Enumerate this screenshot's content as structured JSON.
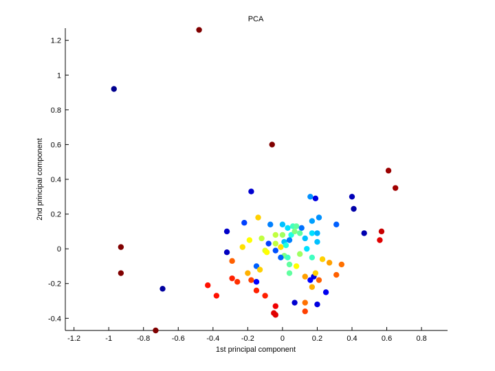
{
  "chart_data": {
    "type": "scatter",
    "title": "PCA",
    "xlabel": "1st principal component",
    "ylabel": "2nd principal component",
    "xlim": [
      -1.25,
      0.95
    ],
    "ylim": [
      -0.47,
      1.27
    ],
    "xticks": [
      -1.2,
      -1,
      -0.8,
      -0.6,
      -0.4,
      -0.2,
      0,
      0.2,
      0.4,
      0.6,
      0.8
    ],
    "yticks": [
      -0.4,
      -0.2,
      0,
      0.2,
      0.4,
      0.6,
      0.8,
      1,
      1.2
    ],
    "grid": false,
    "legend": "none",
    "colormap": "jet",
    "points": [
      {
        "x": -0.48,
        "y": 1.26,
        "color": "#800000"
      },
      {
        "x": -0.97,
        "y": 0.92,
        "color": "#00008f"
      },
      {
        "x": -0.06,
        "y": 0.6,
        "color": "#800000"
      },
      {
        "x": 0.61,
        "y": 0.45,
        "color": "#9b0000"
      },
      {
        "x": 0.65,
        "y": 0.35,
        "color": "#a00000"
      },
      {
        "x": -0.93,
        "y": 0.01,
        "color": "#800000"
      },
      {
        "x": -0.93,
        "y": -0.14,
        "color": "#800000"
      },
      {
        "x": -0.73,
        "y": -0.47,
        "color": "#800000"
      },
      {
        "x": -0.69,
        "y": -0.23,
        "color": "#00009f"
      },
      {
        "x": 0.57,
        "y": 0.1,
        "color": "#c80000"
      },
      {
        "x": 0.56,
        "y": 0.05,
        "color": "#e00000"
      },
      {
        "x": 0.47,
        "y": 0.09,
        "color": "#0000b0"
      },
      {
        "x": 0.41,
        "y": 0.23,
        "color": "#0000a8"
      },
      {
        "x": 0.4,
        "y": 0.3,
        "color": "#0000b8"
      },
      {
        "x": -0.18,
        "y": 0.33,
        "color": "#0000d0"
      },
      {
        "x": -0.32,
        "y": 0.1,
        "color": "#0000c8"
      },
      {
        "x": -0.32,
        "y": -0.02,
        "color": "#0000c0"
      },
      {
        "x": 0.16,
        "y": 0.3,
        "color": "#0090ff"
      },
      {
        "x": 0.19,
        "y": 0.29,
        "color": "#0000e0"
      },
      {
        "x": 0.31,
        "y": 0.14,
        "color": "#0060ff"
      },
      {
        "x": -0.22,
        "y": 0.15,
        "color": "#0040ff"
      },
      {
        "x": -0.07,
        "y": 0.14,
        "color": "#0080ff"
      },
      {
        "x": -0.14,
        "y": 0.18,
        "color": "#ffd000"
      },
      {
        "x": 0.0,
        "y": 0.14,
        "color": "#00c0ff"
      },
      {
        "x": 0.03,
        "y": 0.12,
        "color": "#00e0ff"
      },
      {
        "x": 0.06,
        "y": 0.13,
        "color": "#40ffc0"
      },
      {
        "x": 0.08,
        "y": 0.13,
        "color": "#60ffa0"
      },
      {
        "x": 0.11,
        "y": 0.12,
        "color": "#0070ff"
      },
      {
        "x": 0.17,
        "y": 0.16,
        "color": "#00a0ff"
      },
      {
        "x": 0.21,
        "y": 0.18,
        "color": "#0090ff"
      },
      {
        "x": 0.05,
        "y": 0.08,
        "color": "#20ffe0"
      },
      {
        "x": 0.07,
        "y": 0.1,
        "color": "#80ff80"
      },
      {
        "x": 0.1,
        "y": 0.09,
        "color": "#60ffa0"
      },
      {
        "x": 0.13,
        "y": 0.06,
        "color": "#00c0ff"
      },
      {
        "x": 0.17,
        "y": 0.09,
        "color": "#00e0ff"
      },
      {
        "x": 0.2,
        "y": 0.09,
        "color": "#00b0ff"
      },
      {
        "x": 0.2,
        "y": 0.04,
        "color": "#00c0ff"
      },
      {
        "x": -0.19,
        "y": 0.05,
        "color": "#ffff00"
      },
      {
        "x": -0.23,
        "y": 0.01,
        "color": "#ffe000"
      },
      {
        "x": -0.12,
        "y": 0.06,
        "color": "#c0ff40"
      },
      {
        "x": -0.08,
        "y": 0.03,
        "color": "#0040ff"
      },
      {
        "x": -0.04,
        "y": 0.08,
        "color": "#c0ff40"
      },
      {
        "x": 0.0,
        "y": 0.08,
        "color": "#a0ff60"
      },
      {
        "x": 0.01,
        "y": 0.04,
        "color": "#00c0ff"
      },
      {
        "x": 0.04,
        "y": 0.05,
        "color": "#0080ff"
      },
      {
        "x": -0.04,
        "y": 0.03,
        "color": "#c0ff40"
      },
      {
        "x": -0.01,
        "y": 0.01,
        "color": "#ffe000"
      },
      {
        "x": 0.02,
        "y": 0.02,
        "color": "#20ffe0"
      },
      {
        "x": -0.1,
        "y": -0.01,
        "color": "#e0ff20"
      },
      {
        "x": -0.09,
        "y": -0.02,
        "color": "#ffff00"
      },
      {
        "x": -0.04,
        "y": -0.01,
        "color": "#0050ff"
      },
      {
        "x": 0.01,
        "y": -0.04,
        "color": "#80ff80"
      },
      {
        "x": -0.01,
        "y": -0.05,
        "color": "#0060ff"
      },
      {
        "x": 0.03,
        "y": -0.05,
        "color": "#40ffc0"
      },
      {
        "x": 0.1,
        "y": -0.03,
        "color": "#a0ff60"
      },
      {
        "x": 0.14,
        "y": 0.0,
        "color": "#00e0ff"
      },
      {
        "x": 0.17,
        "y": -0.05,
        "color": "#40ffc0"
      },
      {
        "x": -0.29,
        "y": -0.07,
        "color": "#ff6000"
      },
      {
        "x": -0.15,
        "y": -0.1,
        "color": "#0060ff"
      },
      {
        "x": -0.13,
        "y": -0.12,
        "color": "#ffd000"
      },
      {
        "x": -0.2,
        "y": -0.14,
        "color": "#ffb000"
      },
      {
        "x": -0.18,
        "y": -0.18,
        "color": "#ff4000"
      },
      {
        "x": -0.15,
        "y": -0.19,
        "color": "#0000ff"
      },
      {
        "x": -0.26,
        "y": -0.19,
        "color": "#ff3000"
      },
      {
        "x": -0.29,
        "y": -0.17,
        "color": "#ff2000"
      },
      {
        "x": -0.43,
        "y": -0.21,
        "color": "#ff1000"
      },
      {
        "x": -0.38,
        "y": -0.27,
        "color": "#ff1000"
      },
      {
        "x": -0.15,
        "y": -0.24,
        "color": "#ff2000"
      },
      {
        "x": -0.1,
        "y": -0.27,
        "color": "#ff2000"
      },
      {
        "x": -0.04,
        "y": -0.33,
        "color": "#f00000"
      },
      {
        "x": -0.05,
        "y": -0.37,
        "color": "#e00000"
      },
      {
        "x": -0.04,
        "y": -0.38,
        "color": "#e00000"
      },
      {
        "x": 0.04,
        "y": -0.09,
        "color": "#60ffa0"
      },
      {
        "x": 0.04,
        "y": -0.14,
        "color": "#60ffa0"
      },
      {
        "x": 0.08,
        "y": -0.1,
        "color": "#ffff00"
      },
      {
        "x": 0.13,
        "y": -0.16,
        "color": "#ffa000"
      },
      {
        "x": 0.16,
        "y": -0.18,
        "color": "#0000ff"
      },
      {
        "x": 0.18,
        "y": -0.16,
        "color": "#0000e0"
      },
      {
        "x": 0.19,
        "y": -0.14,
        "color": "#ffd000"
      },
      {
        "x": 0.17,
        "y": -0.22,
        "color": "#ffb000"
      },
      {
        "x": 0.21,
        "y": -0.18,
        "color": "#ff6000"
      },
      {
        "x": 0.23,
        "y": -0.06,
        "color": "#ffd000"
      },
      {
        "x": 0.27,
        "y": -0.08,
        "color": "#ffa000"
      },
      {
        "x": 0.31,
        "y": -0.15,
        "color": "#ff6000"
      },
      {
        "x": 0.34,
        "y": -0.09,
        "color": "#ff7000"
      },
      {
        "x": 0.25,
        "y": -0.25,
        "color": "#0000f0"
      },
      {
        "x": 0.2,
        "y": -0.32,
        "color": "#0000e0"
      },
      {
        "x": 0.13,
        "y": -0.31,
        "color": "#ff7000"
      },
      {
        "x": 0.13,
        "y": -0.36,
        "color": "#ff4000"
      },
      {
        "x": 0.07,
        "y": -0.31,
        "color": "#0000d0"
      }
    ]
  }
}
